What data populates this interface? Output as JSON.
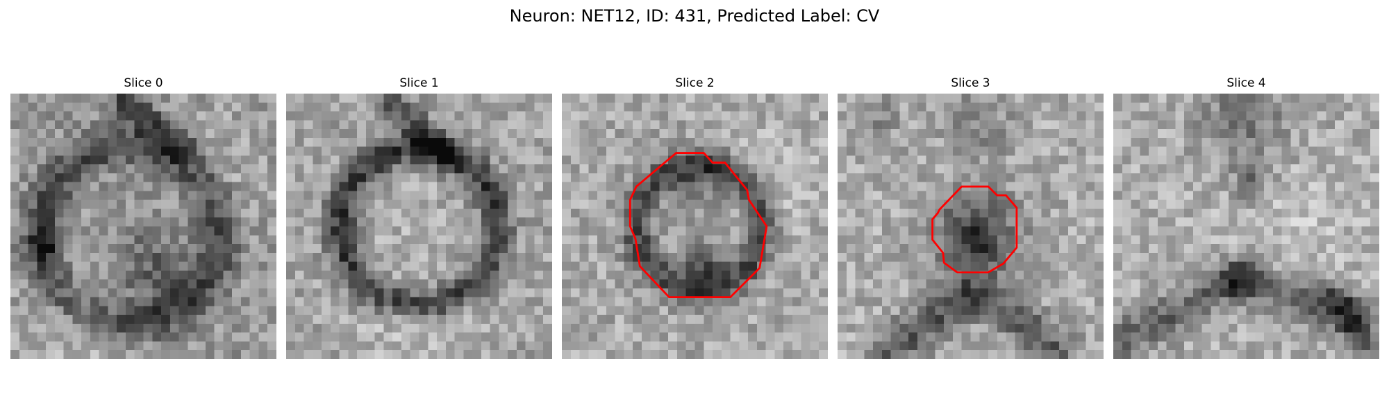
{
  "figure": {
    "title": "Neuron: NET12, ID: 431, Predicted Label: CV"
  },
  "panels": [
    {
      "title": "Slice 0",
      "contour": false
    },
    {
      "title": "Slice 1",
      "contour": false
    },
    {
      "title": "Slice 2",
      "contour": true
    },
    {
      "title": "Slice 3",
      "contour": true
    },
    {
      "title": "Slice 4",
      "contour": false
    }
  ],
  "colors": {
    "contour": "#ff0000",
    "background": "#ffffff"
  }
}
